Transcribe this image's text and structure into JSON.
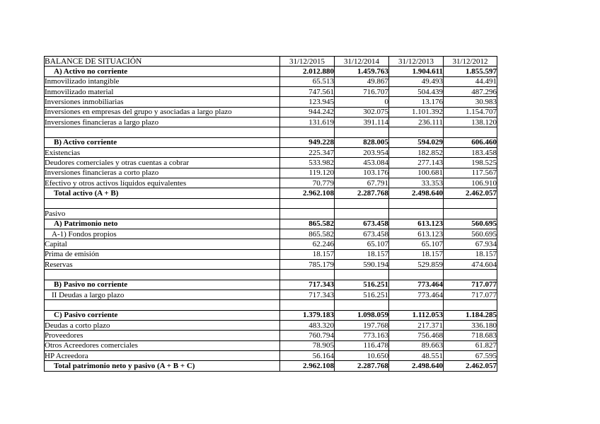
{
  "page": {
    "background": "#ffffff",
    "text_color": "#000000",
    "border_color": "#000000"
  },
  "balance_table": {
    "title": "BALANCE DE SITUACIÓN",
    "date_columns": [
      "31/12/2015",
      "31/12/2014",
      "31/12/2013",
      "31/12/2012"
    ],
    "rows": [
      {
        "label": "A) Activo no corriente",
        "values": [
          "2.012.880",
          "1.459.763",
          "1.904.611",
          "1.855.597"
        ],
        "bold": true,
        "indent": 1,
        "empty": false
      },
      {
        "label": "Inmovilizado intangible",
        "values": [
          "65.513",
          "49.867",
          "49.493",
          "44.491"
        ],
        "bold": false,
        "indent": 0,
        "empty": false
      },
      {
        "label": "Inmovilizado material",
        "values": [
          "747.561",
          "716.707",
          "504.439",
          "487.296"
        ],
        "bold": false,
        "indent": 0,
        "empty": false
      },
      {
        "label": "Inversiones inmobiliarias",
        "values": [
          "123.945",
          "0",
          "13.176",
          "30.983"
        ],
        "bold": false,
        "indent": 0,
        "empty": false
      },
      {
        "label": "Inversiones en empresas del grupo y asociadas a largo plazo",
        "values": [
          "944.242",
          "302.075",
          "1.101.392",
          "1.154.707"
        ],
        "bold": false,
        "indent": 0,
        "empty": false
      },
      {
        "label": "Inversiones financieras a largo plazo",
        "values": [
          "131.619",
          "391.114",
          "236.111",
          "138.120"
        ],
        "bold": false,
        "indent": 0,
        "empty": false
      },
      {
        "label": "",
        "values": [
          "",
          "",
          "",
          ""
        ],
        "bold": false,
        "indent": 0,
        "empty": true
      },
      {
        "label": "B) Activo corriente",
        "values": [
          "949.228",
          "828.005",
          "594.029",
          "606.460"
        ],
        "bold": true,
        "indent": 1,
        "empty": false
      },
      {
        "label": "Existencias",
        "values": [
          "225.347",
          "203.954",
          "182.852",
          "183.458"
        ],
        "bold": false,
        "indent": 0,
        "empty": false
      },
      {
        "label": "Deudores comerciales y otras cuentas a cobrar",
        "values": [
          "533.982",
          "453.084",
          "277.143",
          "198.525"
        ],
        "bold": false,
        "indent": 0,
        "empty": false
      },
      {
        "label": "Inversiones financieras a corto plazo",
        "values": [
          "119.120",
          "103.176",
          "100.681",
          "117.567"
        ],
        "bold": false,
        "indent": 0,
        "empty": false
      },
      {
        "label": "Efectivo y otros activos líquidos equivalentes",
        "values": [
          "70.779",
          "67.791",
          "33.353",
          "106.910"
        ],
        "bold": false,
        "indent": 0,
        "empty": false
      },
      {
        "label": "Total activo (A + B)",
        "values": [
          "2.962.108",
          "2.287.768",
          "2.498.640",
          "2.462.057"
        ],
        "bold": true,
        "indent": 1,
        "empty": false
      },
      {
        "label": "",
        "values": [
          "",
          "",
          "",
          ""
        ],
        "bold": false,
        "indent": 0,
        "empty": true
      },
      {
        "label": "Pasivo",
        "values": [
          "",
          "",
          "",
          ""
        ],
        "bold": false,
        "indent": 0,
        "empty": false
      },
      {
        "label": "A) Patrimonio neto",
        "values": [
          "865.582",
          "673.458",
          "613.123",
          "560.695"
        ],
        "bold": true,
        "indent": 1,
        "empty": false
      },
      {
        "label": "A-1) Fondos propios",
        "values": [
          "865.582",
          "673.458",
          "613.123",
          "560.695"
        ],
        "bold": false,
        "indent": 2,
        "empty": false
      },
      {
        "label": "Capital",
        "values": [
          "62.246",
          "65.107",
          "65.107",
          "67.934"
        ],
        "bold": false,
        "indent": 0,
        "empty": false
      },
      {
        "label": "Prima de emisión",
        "values": [
          "18.157",
          "18.157",
          "18.157",
          "18.157"
        ],
        "bold": false,
        "indent": 0,
        "empty": false
      },
      {
        "label": "Reservas",
        "values": [
          "785.179",
          "590.194",
          "529.859",
          "474.604"
        ],
        "bold": false,
        "indent": 0,
        "empty": false
      },
      {
        "label": "",
        "values": [
          "",
          "",
          "",
          ""
        ],
        "bold": false,
        "indent": 0,
        "empty": true
      },
      {
        "label": "B) Pasivo no corriente",
        "values": [
          "717.343",
          "516.251",
          "773.464",
          "717.077"
        ],
        "bold": true,
        "indent": 1,
        "empty": false
      },
      {
        "label": "II Deudas a largo plazo",
        "values": [
          "717.343",
          "516.251",
          "773.464",
          "717.077"
        ],
        "bold": false,
        "indent": 2,
        "empty": false
      },
      {
        "label": "",
        "values": [
          "",
          "",
          "",
          ""
        ],
        "bold": false,
        "indent": 0,
        "empty": true
      },
      {
        "label": "C) Pasivo corriente",
        "values": [
          "1.379.183",
          "1.098.059",
          "1.112.053",
          "1.184.285"
        ],
        "bold": true,
        "indent": 1,
        "empty": false
      },
      {
        "label": "Deudas a corto plazo",
        "values": [
          "483.320",
          "197.768",
          "217.371",
          "336.180"
        ],
        "bold": false,
        "indent": 0,
        "empty": false
      },
      {
        "label": "Proveedores",
        "values": [
          "760.794",
          "773.163",
          "756.468",
          "718.683"
        ],
        "bold": false,
        "indent": 0,
        "empty": false
      },
      {
        "label": "Otros Acreedores comerciales",
        "values": [
          "78.905",
          "116.478",
          "89.663",
          "61.827"
        ],
        "bold": false,
        "indent": 0,
        "empty": false
      },
      {
        "label": "HP Acreedora",
        "values": [
          "56.164",
          "10.650",
          "48.551",
          "67.595"
        ],
        "bold": false,
        "indent": 0,
        "empty": false
      },
      {
        "label": "Total patrimonio neto y pasivo (A + B + C)",
        "values": [
          "2.962.108",
          "2.287.768",
          "2.498.640",
          "2.462.057"
        ],
        "bold": true,
        "indent": 1,
        "empty": false
      }
    ]
  }
}
